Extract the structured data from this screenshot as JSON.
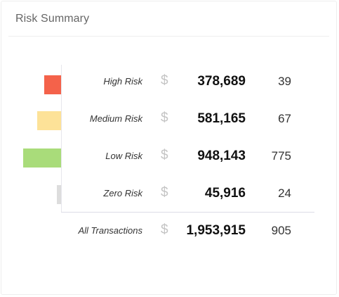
{
  "card": {
    "title": "Risk Summary"
  },
  "colors": {
    "high": "#f4624a",
    "medium": "#fde298",
    "low": "#a9dc7a",
    "zero": "#dddddd"
  },
  "rows": [
    {
      "label": "High Risk",
      "currency": "$",
      "amount": "378,689",
      "count": "39"
    },
    {
      "label": "Medium Risk",
      "currency": "$",
      "amount": "581,165",
      "count": "67"
    },
    {
      "label": "Low Risk",
      "currency": "$",
      "amount": "948,143",
      "count": "775"
    },
    {
      "label": "Zero Risk",
      "currency": "$",
      "amount": "45,916",
      "count": "24"
    }
  ],
  "total": {
    "label": "All Transactions",
    "currency": "$",
    "amount": "1,953,915",
    "count": "905"
  }
}
